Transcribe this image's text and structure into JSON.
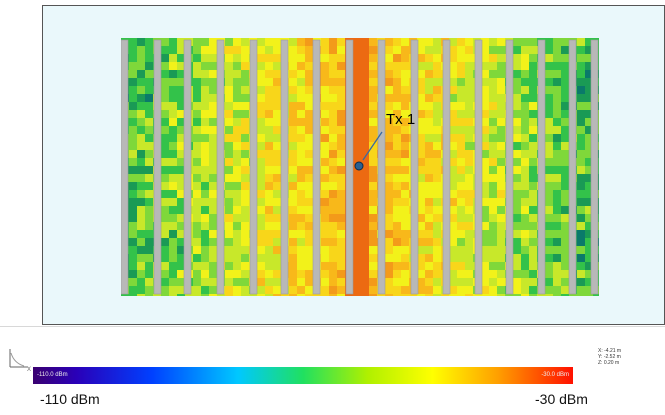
{
  "transmitter": {
    "label": "Tx 1"
  },
  "colorbar": {
    "min_inner": "-110.0 dBm",
    "max_inner": "-30.0 dBm",
    "min_label": "-110 dBm",
    "max_label": "-30 dBm",
    "colors": [
      "#3a0070",
      "#2a00b8",
      "#0040ff",
      "#00c8ff",
      "#20e060",
      "#b0f000",
      "#ffff00",
      "#ffa000",
      "#ff1000"
    ]
  },
  "coordinates": {
    "x": "X: -4.21 m",
    "y": "Y: -2.52 m",
    "z": "Z: 0.20 m"
  },
  "axis_icon": {
    "x_letter": "X"
  }
}
